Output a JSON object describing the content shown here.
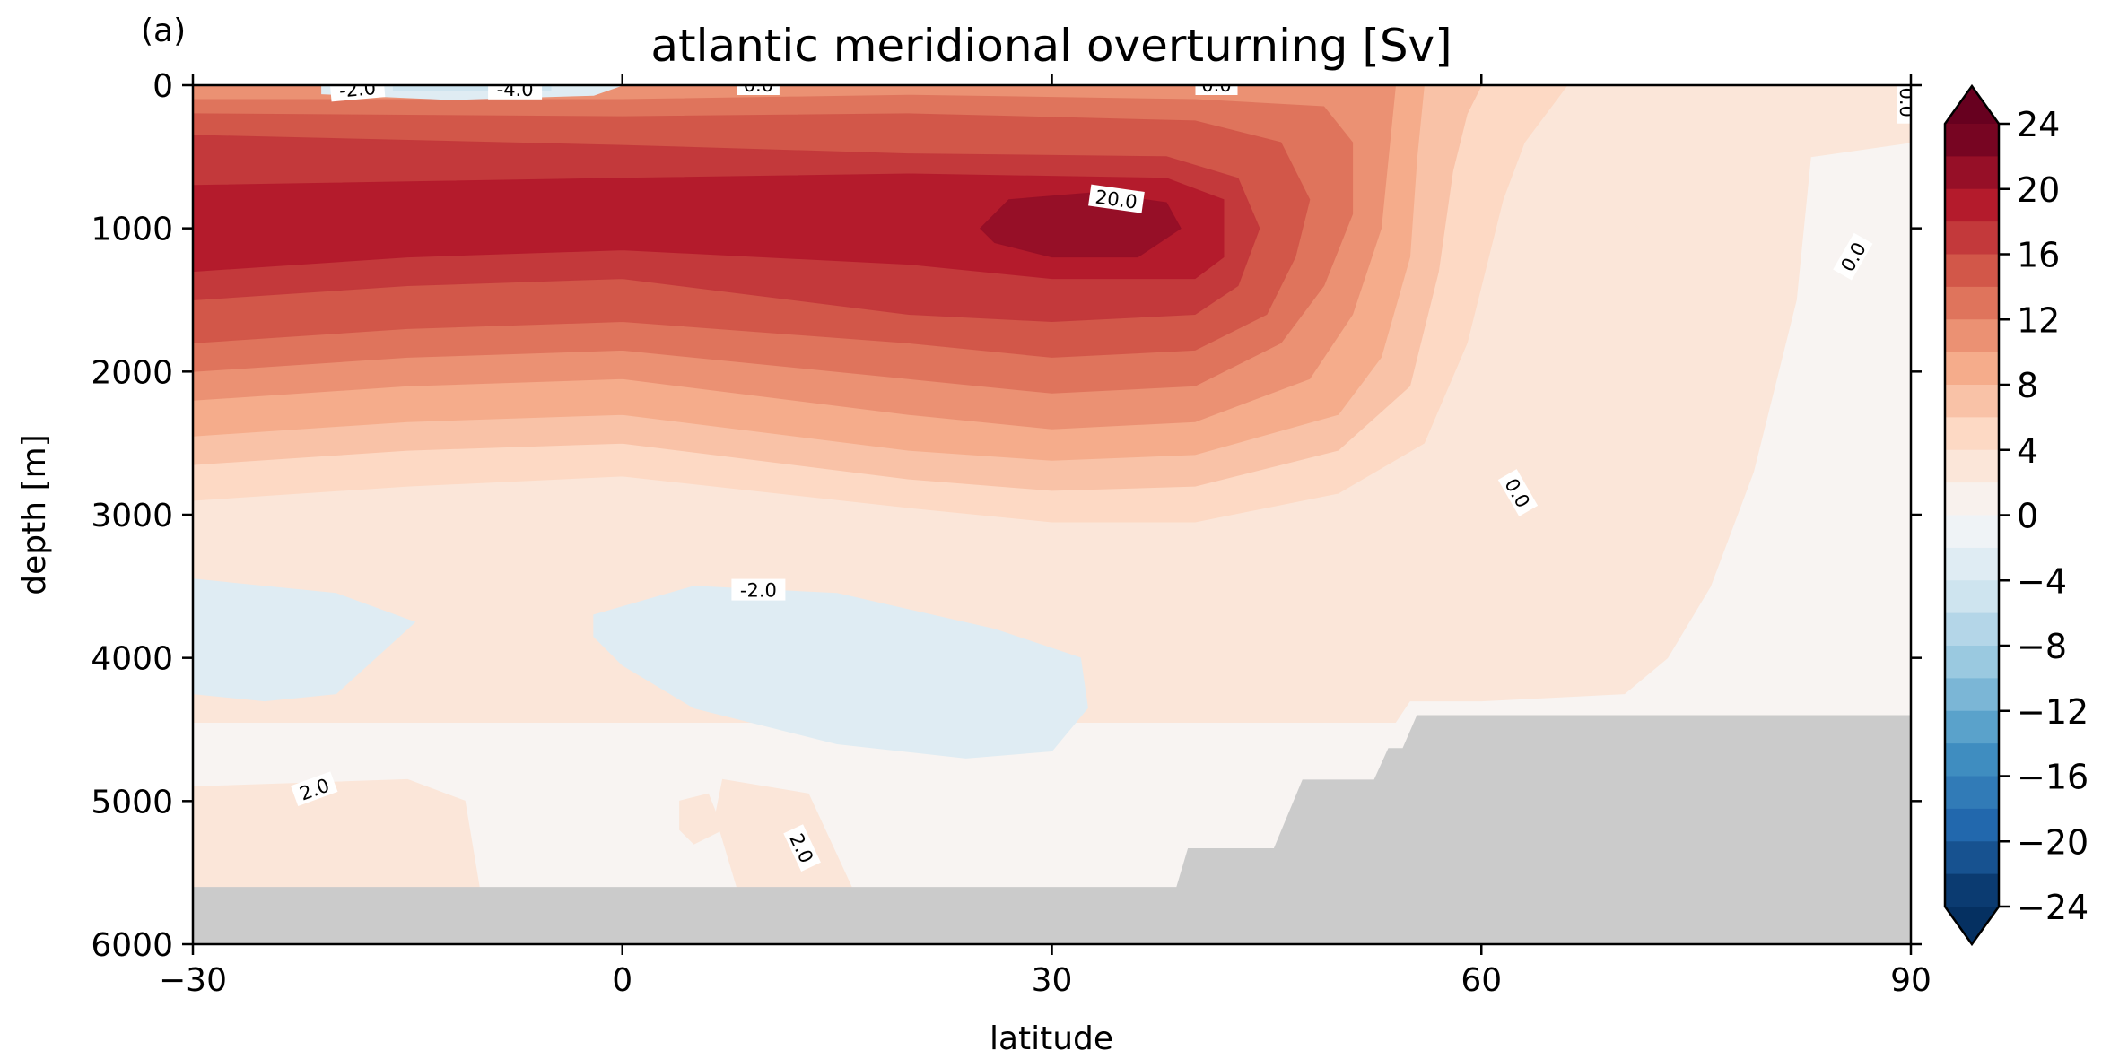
{
  "chart_data": {
    "type": "heatmap",
    "subtype": "filled-contour",
    "panel_label": "(a)",
    "title": "atlantic meridional overturning [Sv]",
    "xlabel": "latitude",
    "ylabel": "depth [m]",
    "xlim": [
      -30,
      90
    ],
    "ylim": [
      6000,
      0
    ],
    "y_inverted": true,
    "x_ticks": [
      {
        "value": -30,
        "label": "−30"
      },
      {
        "value": 0,
        "label": "0"
      },
      {
        "value": 30,
        "label": "30"
      },
      {
        "value": 60,
        "label": "60"
      },
      {
        "value": 90,
        "label": "90"
      }
    ],
    "y_ticks": [
      {
        "value": 0,
        "label": "0"
      },
      {
        "value": 1000,
        "label": "1000"
      },
      {
        "value": 2000,
        "label": "2000"
      },
      {
        "value": 3000,
        "label": "3000"
      },
      {
        "value": 4000,
        "label": "4000"
      },
      {
        "value": 5000,
        "label": "5000"
      },
      {
        "value": 6000,
        "label": "6000"
      }
    ],
    "colormap": "RdBu_r",
    "levels_min": -24,
    "levels_max": 24,
    "level_step": 2,
    "extend": "both",
    "colorbar_ticks": [
      {
        "value": 24,
        "label": "24"
      },
      {
        "value": 20,
        "label": "20"
      },
      {
        "value": 16,
        "label": "16"
      },
      {
        "value": 12,
        "label": "12"
      },
      {
        "value": 8,
        "label": "8"
      },
      {
        "value": 4,
        "label": "4"
      },
      {
        "value": 0,
        "label": "0"
      },
      {
        "value": -4,
        "label": "−4"
      },
      {
        "value": -8,
        "label": "−8"
      },
      {
        "value": -12,
        "label": "−12"
      },
      {
        "value": -16,
        "label": "−16"
      },
      {
        "value": -20,
        "label": "−20"
      },
      {
        "value": -24,
        "label": "−24"
      }
    ],
    "max_cell": {
      "lat": 35,
      "depth": 1000,
      "value": 21
    },
    "contour_labels": [
      {
        "text": "-2.0",
        "lat": -18.5,
        "depth": 30,
        "angle": -5
      },
      {
        "text": "-4.0",
        "lat": -7.5,
        "depth": 30,
        "angle": 0
      },
      {
        "text": "0.0",
        "lat": 9.5,
        "depth": 0,
        "angle": 0
      },
      {
        "text": "0.0",
        "lat": 41.5,
        "depth": 0,
        "angle": 0
      },
      {
        "text": "0.0",
        "lat": 89.7,
        "depth": 120,
        "angle": 90
      },
      {
        "text": "20.0",
        "lat": 34.5,
        "depth": 800,
        "angle": 8
      },
      {
        "text": "0.0",
        "lat": 86.0,
        "depth": 1200,
        "angle": -60
      },
      {
        "text": "0.0",
        "lat": 62.5,
        "depth": 2850,
        "angle": 60
      },
      {
        "text": "-2.0",
        "lat": 9.5,
        "depth": 3530,
        "angle": 0
      },
      {
        "text": "2.0",
        "lat": -21.5,
        "depth": 4920,
        "angle": -20
      },
      {
        "text": "2.0",
        "lat": 12.5,
        "depth": 5330,
        "angle": 65
      }
    ],
    "bathymetry": [
      [
        -30,
        5600
      ],
      [
        38.7,
        5600
      ],
      [
        39.5,
        5330
      ],
      [
        45.5,
        5330
      ],
      [
        47.5,
        4850
      ],
      [
        52.5,
        4850
      ],
      [
        53.5,
        4630
      ],
      [
        54.5,
        4630
      ],
      [
        55.5,
        4400
      ],
      [
        90,
        4400
      ]
    ],
    "bathymetry_color": "#cbcbcb",
    "regions": [
      {
        "level": 0,
        "points": [
          [
            -30,
            0
          ],
          [
            90,
            0
          ],
          [
            90,
            6000
          ],
          [
            -30,
            6000
          ]
        ]
      },
      {
        "level": 2,
        "points": [
          [
            -30,
            0
          ],
          [
            90,
            0
          ],
          [
            90,
            400
          ],
          [
            83,
            500
          ],
          [
            82,
            1500
          ],
          [
            79,
            2700
          ],
          [
            76,
            3500
          ],
          [
            73,
            4000
          ],
          [
            70,
            4250
          ],
          [
            60,
            4300
          ],
          [
            55,
            4300
          ],
          [
            54,
            4450
          ],
          [
            10,
            4450
          ],
          [
            -30,
            4450
          ],
          [
            -30,
            3000
          ],
          [
            -30,
            0
          ]
        ]
      },
      {
        "level": 2,
        "points": [
          [
            -30,
            4900
          ],
          [
            -15,
            4850
          ],
          [
            -11,
            5000
          ],
          [
            -10,
            5600
          ],
          [
            -30,
            5600
          ]
        ]
      },
      {
        "level": 2,
        "points": [
          [
            4,
            5000
          ],
          [
            6,
            4950
          ],
          [
            7,
            5200
          ],
          [
            5,
            5300
          ],
          [
            4,
            5200
          ]
        ]
      },
      {
        "level": 2,
        "points": [
          [
            7,
            4850
          ],
          [
            13,
            4950
          ],
          [
            16,
            5600
          ],
          [
            8,
            5600
          ],
          [
            6.5,
            5100
          ]
        ]
      },
      {
        "level": -2,
        "points": [
          [
            -30,
            3450
          ],
          [
            -20,
            3550
          ],
          [
            -14.5,
            3750
          ],
          [
            -20,
            4250
          ],
          [
            -25,
            4300
          ],
          [
            -30,
            4250
          ]
        ]
      },
      {
        "level": -2,
        "points": [
          [
            -2,
            3700
          ],
          [
            5,
            3500
          ],
          [
            15,
            3550
          ],
          [
            26,
            3800
          ],
          [
            32,
            4000
          ],
          [
            32.5,
            4350
          ],
          [
            30,
            4650
          ],
          [
            24,
            4700
          ],
          [
            15,
            4600
          ],
          [
            5,
            4350
          ],
          [
            0,
            4050
          ],
          [
            -2,
            3850
          ]
        ]
      },
      {
        "level": 2,
        "points": [
          [
            -30,
            0
          ],
          [
            -30,
            3200
          ],
          [
            -20,
            3150
          ],
          [
            0,
            3120
          ],
          [
            20,
            3250
          ],
          [
            35,
            3350
          ],
          [
            50,
            3330
          ],
          [
            60,
            3200
          ],
          [
            63,
            2700
          ],
          [
            65,
            2000
          ],
          [
            66,
            1000
          ],
          [
            68,
            700
          ],
          [
            75,
            1400
          ],
          [
            78,
            1200
          ],
          [
            80,
            400
          ],
          [
            90,
            250
          ],
          [
            90,
            0
          ]
        ]
      },
      {
        "level": 4,
        "points": [
          [
            -30,
            0
          ],
          [
            -30,
            2900
          ],
          [
            -15,
            2800
          ],
          [
            0,
            2730
          ],
          [
            20,
            2950
          ],
          [
            30,
            3050
          ],
          [
            40,
            3050
          ],
          [
            50,
            2850
          ],
          [
            56,
            2500
          ],
          [
            59,
            1800
          ],
          [
            61.5,
            800
          ],
          [
            63,
            400
          ],
          [
            66,
            0
          ]
        ]
      },
      {
        "level": 6,
        "points": [
          [
            -30,
            0
          ],
          [
            -30,
            2650
          ],
          [
            -15,
            2550
          ],
          [
            0,
            2500
          ],
          [
            20,
            2750
          ],
          [
            30,
            2830
          ],
          [
            40,
            2800
          ],
          [
            50,
            2550
          ],
          [
            55,
            2100
          ],
          [
            57,
            1300
          ],
          [
            58,
            600
          ],
          [
            59,
            200
          ],
          [
            60,
            0
          ]
        ]
      },
      {
        "level": 8,
        "points": [
          [
            -30,
            0
          ],
          [
            -30,
            2450
          ],
          [
            -15,
            2350
          ],
          [
            0,
            2300
          ],
          [
            20,
            2550
          ],
          [
            30,
            2620
          ],
          [
            40,
            2580
          ],
          [
            50,
            2300
          ],
          [
            53,
            1900
          ],
          [
            55,
            1200
          ],
          [
            55.5,
            500
          ],
          [
            56,
            0
          ]
        ]
      },
      {
        "level": 10,
        "points": [
          [
            -30,
            0
          ],
          [
            -30,
            2200
          ],
          [
            -15,
            2100
          ],
          [
            0,
            2050
          ],
          [
            20,
            2300
          ],
          [
            30,
            2400
          ],
          [
            40,
            2350
          ],
          [
            48,
            2050
          ],
          [
            51,
            1600
          ],
          [
            53,
            1000
          ],
          [
            53.5,
            500
          ],
          [
            54,
            0
          ]
        ]
      },
      {
        "level": 12,
        "points": [
          [
            -30,
            100
          ],
          [
            -30,
            2000
          ],
          [
            -15,
            1900
          ],
          [
            0,
            1850
          ],
          [
            20,
            2050
          ],
          [
            30,
            2150
          ],
          [
            40,
            2100
          ],
          [
            46,
            1800
          ],
          [
            49,
            1400
          ],
          [
            51,
            900
          ],
          [
            51,
            400
          ],
          [
            49,
            150
          ],
          [
            40,
            100
          ],
          [
            20,
            70
          ],
          [
            0,
            100
          ]
        ]
      },
      {
        "level": 14,
        "points": [
          [
            -30,
            200
          ],
          [
            -30,
            1800
          ],
          [
            -15,
            1700
          ],
          [
            0,
            1650
          ],
          [
            20,
            1800
          ],
          [
            30,
            1900
          ],
          [
            40,
            1850
          ],
          [
            45,
            1600
          ],
          [
            47,
            1200
          ],
          [
            48,
            800
          ],
          [
            46,
            400
          ],
          [
            40,
            250
          ],
          [
            20,
            200
          ],
          [
            0,
            220
          ]
        ]
      },
      {
        "level": 16,
        "points": [
          [
            -30,
            350
          ],
          [
            -30,
            1500
          ],
          [
            -15,
            1400
          ],
          [
            0,
            1350
          ],
          [
            20,
            1600
          ],
          [
            30,
            1650
          ],
          [
            40,
            1600
          ],
          [
            43,
            1400
          ],
          [
            44.5,
            1000
          ],
          [
            43,
            650
          ],
          [
            38,
            500
          ],
          [
            20,
            480
          ],
          [
            0,
            420
          ]
        ]
      },
      {
        "level": 18,
        "points": [
          [
            -30,
            700
          ],
          [
            -30,
            1300
          ],
          [
            -15,
            1200
          ],
          [
            0,
            1150
          ],
          [
            20,
            1250
          ],
          [
            30,
            1350
          ],
          [
            40,
            1350
          ],
          [
            42,
            1200
          ],
          [
            42,
            800
          ],
          [
            38,
            650
          ],
          [
            20,
            620
          ],
          [
            0,
            650
          ]
        ]
      },
      {
        "level": 20,
        "points": [
          [
            25,
            1000
          ],
          [
            27,
            800
          ],
          [
            33,
            750
          ],
          [
            38,
            820
          ],
          [
            39,
            1000
          ],
          [
            36,
            1200
          ],
          [
            30,
            1200
          ],
          [
            26,
            1100
          ]
        ]
      },
      {
        "level": -2,
        "points": [
          [
            -21,
            0
          ],
          [
            0,
            0
          ],
          [
            -2,
            70
          ],
          [
            -12,
            100
          ],
          [
            -21,
            60
          ]
        ]
      },
      {
        "level": -4,
        "points": [
          [
            -16,
            10
          ],
          [
            -5,
            10
          ],
          [
            -5,
            40
          ],
          [
            -16,
            40
          ]
        ]
      }
    ]
  }
}
